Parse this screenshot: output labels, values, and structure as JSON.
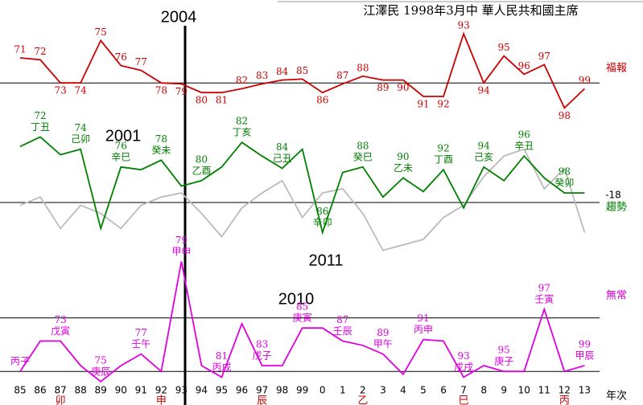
{
  "chart_data": {
    "type": "line",
    "title": "江澤民 1998年3月中 華人民共和國主席",
    "categories": [
      85,
      86,
      87,
      88,
      89,
      90,
      91,
      92,
      93,
      94,
      95,
      96,
      97,
      98,
      99,
      0,
      1,
      2,
      3,
      4,
      5,
      6,
      7,
      8,
      9,
      10,
      11,
      12,
      13
    ],
    "x_sublabels": [
      null,
      null,
      "卯",
      null,
      null,
      null,
      null,
      "申",
      null,
      null,
      null,
      null,
      "辰",
      null,
      null,
      null,
      null,
      "乙",
      null,
      null,
      null,
      null,
      "巳",
      null,
      null,
      null,
      null,
      "丙",
      null
    ],
    "x_label": "年次",
    "annotations": [
      "2004",
      "2001",
      "2011",
      "2010"
    ],
    "panels": [
      {
        "name": "福報",
        "ylim": [
          0,
          100
        ],
        "reference": [
          39
        ],
        "series": [
          {
            "color": "#cc0000",
            "values": [
              65,
              63,
              39,
              39,
              83,
              57,
              52,
              39,
              38,
              29,
              29,
              33,
              38,
              42,
              43,
              29,
              38,
              46,
              42,
              42,
              25,
              25,
              90,
              39,
              67,
              48,
              58,
              13,
              33
            ],
            "label_years": [
              71,
              72,
              73,
              74,
              75,
              76,
              77,
              78,
              79,
              80,
              81,
              82,
              83,
              84,
              85,
              86,
              87,
              88,
              89,
              90,
              91,
              92,
              93,
              94,
              95,
              96,
              97,
              98,
              99
            ]
          }
        ]
      },
      {
        "name": "趨勢",
        "note": "-18",
        "ylim": [
          0,
          100
        ],
        "reference": [
          40
        ],
        "series": [
          {
            "color": "#bbbbbb",
            "values": [
              38,
              44,
              21,
              38,
              32,
              21,
              38,
              44,
              47,
              32,
              15,
              36,
              47,
              56,
              29,
              47,
              50,
              32,
              5,
              9,
              13,
              29,
              38,
              59,
              74,
              79,
              50,
              65,
              18
            ]
          },
          {
            "color": "#008000",
            "values": [
              81,
              88,
              75,
              79,
              21,
              66,
              64,
              71,
              52,
              56,
              66,
              84,
              74,
              65,
              79,
              18,
              62,
              66,
              44,
              58,
              48,
              64,
              36,
              66,
              56,
              74,
              58,
              47,
              47
            ],
            "label_years": [
              null,
              72,
              null,
              74,
              null,
              76,
              null,
              78,
              null,
              80,
              null,
              82,
              null,
              84,
              null,
              86,
              null,
              88,
              null,
              90,
              null,
              92,
              null,
              94,
              null,
              96,
              null,
              98,
              null
            ],
            "label_names": [
              null,
              "丁丑",
              null,
              "己卯",
              null,
              "辛巳",
              null,
              "癸未",
              null,
              "乙酉",
              null,
              "丁亥",
              null,
              "己丑",
              null,
              "辛卯",
              null,
              "癸巳",
              null,
              "乙未",
              null,
              "丁酉",
              null,
              "己亥",
              null,
              "辛丑",
              null,
              "癸卯",
              null
            ]
          }
        ]
      },
      {
        "name": "無常",
        "ylim": [
          0,
          100
        ],
        "reference": [
          58,
          21
        ],
        "series": [
          {
            "color": "#e000e0",
            "values": [
              21,
              42,
              42,
              25,
              14,
              25,
              33,
              21,
              97,
              25,
              17,
              54,
              25,
              25,
              51,
              51,
              42,
              39,
              33,
              19,
              43,
              42,
              17,
              25,
              21,
              21,
              64,
              21,
              25
            ],
            "label_years": [
              null,
              null,
              73,
              null,
              75,
              null,
              77,
              null,
              79,
              null,
              81,
              null,
              83,
              null,
              85,
              null,
              87,
              null,
              89,
              null,
              91,
              null,
              93,
              null,
              95,
              null,
              97,
              null,
              99
            ],
            "label_names": [
              "丙子",
              null,
              "戊寅",
              null,
              "庚辰",
              null,
              "壬午",
              null,
              "甲申",
              null,
              "丙戌",
              null,
              "戊子",
              null,
              "庚寅",
              null,
              "壬辰",
              null,
              "甲午",
              null,
              "丙申",
              null,
              "戊戌",
              null,
              "庚子",
              null,
              "壬寅",
              null,
              "甲辰"
            ]
          }
        ]
      }
    ]
  }
}
